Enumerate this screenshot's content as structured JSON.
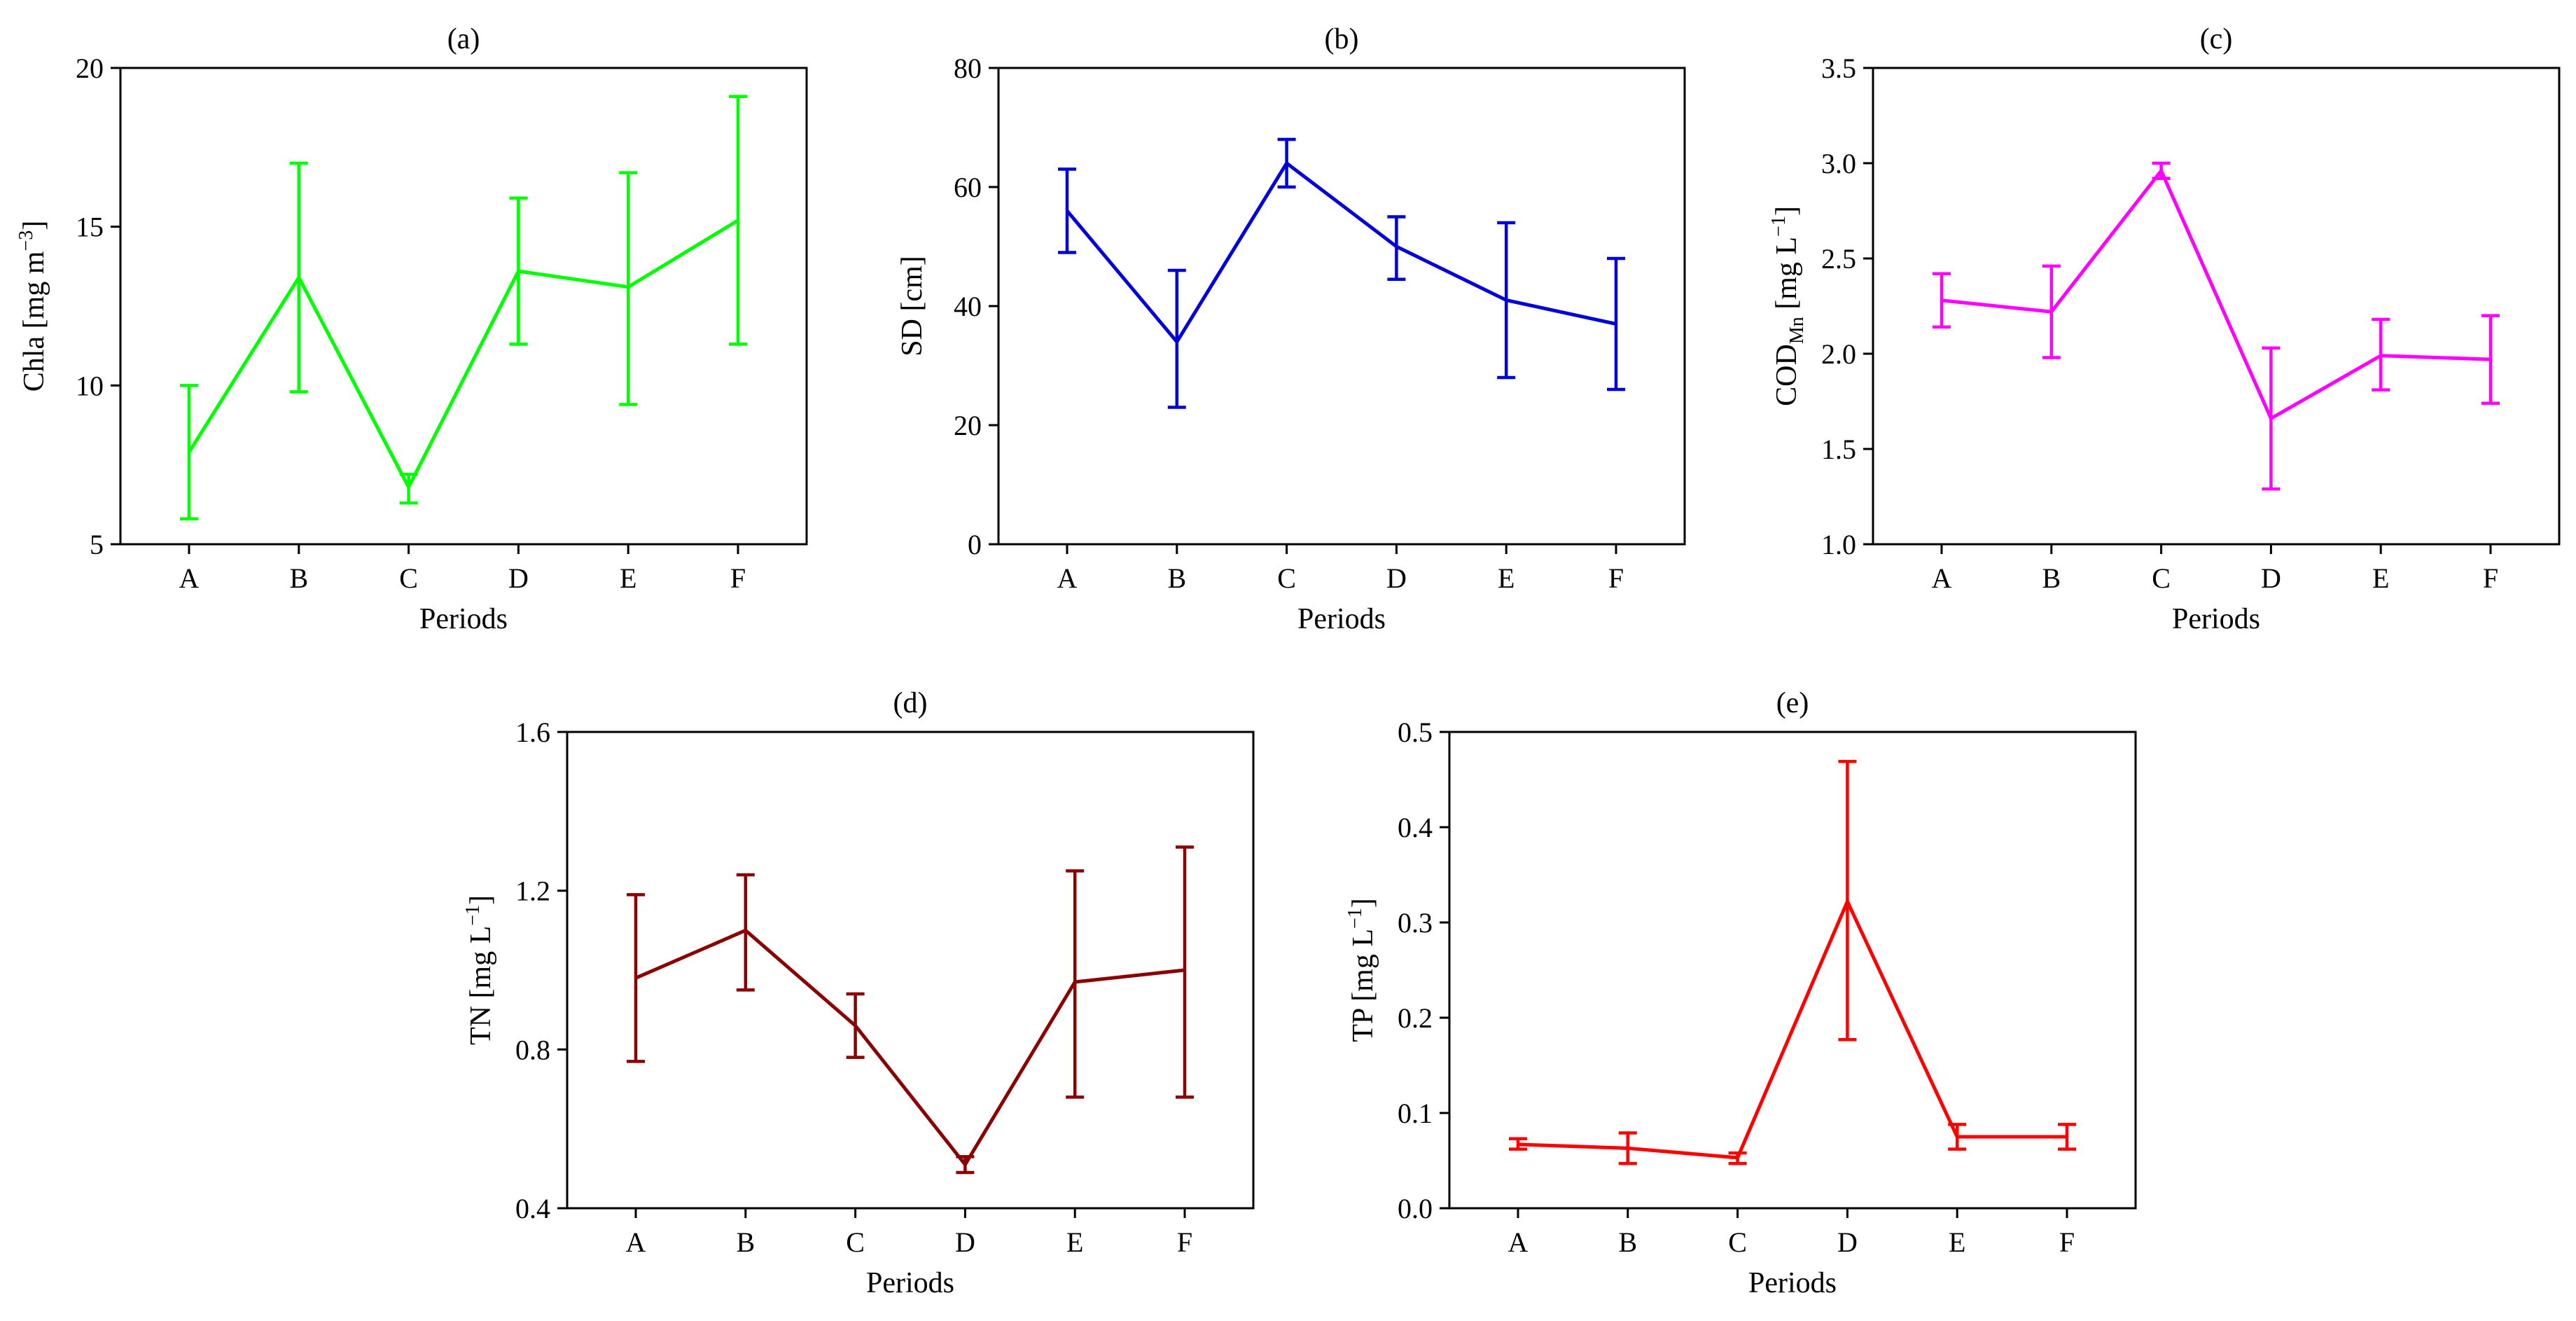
{
  "chart_data": [
    {
      "type": "line",
      "panel": "(a)",
      "title": "(a)",
      "xlabel": "Periods",
      "ylabel": {
        "text": "Chla [mg m",
        "sup": "−3",
        "tail": "]"
      },
      "categories": [
        "A",
        "B",
        "C",
        "D",
        "E",
        "F"
      ],
      "ylim": [
        5,
        20
      ],
      "yticks": [
        "5",
        "10",
        "15",
        "20"
      ],
      "color": "#00ff00",
      "series": [
        {
          "name": "Chla",
          "values": [
            7.9,
            13.4,
            6.8,
            13.6,
            13.1,
            15.2
          ],
          "err_low": [
            5.8,
            9.8,
            6.3,
            11.3,
            9.4,
            11.3
          ],
          "err_high": [
            10.0,
            17.0,
            7.2,
            15.9,
            16.7,
            19.1
          ]
        }
      ]
    },
    {
      "type": "line",
      "panel": "(b)",
      "title": "(b)",
      "xlabel": "Periods",
      "ylabel": {
        "text": "SD [cm]"
      },
      "categories": [
        "A",
        "B",
        "C",
        "D",
        "E",
        "F"
      ],
      "ylim": [
        0,
        80
      ],
      "yticks": [
        "0",
        "20",
        "40",
        "60",
        "80"
      ],
      "color": "#0000dd",
      "series": [
        {
          "name": "SD",
          "values": [
            56,
            34,
            64,
            50,
            41,
            37
          ],
          "err_low": [
            49,
            23,
            60,
            44.5,
            28,
            26
          ],
          "err_high": [
            63,
            46,
            68,
            55,
            54,
            48
          ]
        }
      ]
    },
    {
      "type": "line",
      "panel": "(c)",
      "title": "(c)",
      "xlabel": "Periods",
      "ylabel": {
        "text": "COD",
        "sub": "Mn",
        "mid": " [mg L",
        "sup": "−1",
        "tail": "]"
      },
      "categories": [
        "A",
        "B",
        "C",
        "D",
        "E",
        "F"
      ],
      "ylim": [
        1.0,
        3.5
      ],
      "yticks": [
        "1.0",
        "1.5",
        "2.0",
        "2.5",
        "3.0",
        "3.5"
      ],
      "color": "#ff00ff",
      "series": [
        {
          "name": "CODMn",
          "values": [
            2.28,
            2.22,
            2.96,
            1.66,
            1.99,
            1.97
          ],
          "err_low": [
            2.14,
            1.98,
            2.92,
            1.29,
            1.81,
            1.74
          ],
          "err_high": [
            2.42,
            2.46,
            3.0,
            2.03,
            2.18,
            2.2
          ]
        }
      ]
    },
    {
      "type": "line",
      "panel": "(d)",
      "title": "(d)",
      "xlabel": "Periods",
      "ylabel": {
        "text": "TN [mg L",
        "sup": "−1",
        "tail": "]"
      },
      "categories": [
        "A",
        "B",
        "C",
        "D",
        "E",
        "F"
      ],
      "ylim": [
        0.4,
        1.6
      ],
      "yticks": [
        "0.4",
        "0.8",
        "1.2",
        "1.6"
      ],
      "color": "#8b0000",
      "series": [
        {
          "name": "TN",
          "values": [
            0.98,
            1.1,
            0.86,
            0.51,
            0.97,
            1.0
          ],
          "err_low": [
            0.77,
            0.95,
            0.78,
            0.49,
            0.68,
            0.68
          ],
          "err_high": [
            1.19,
            1.24,
            0.94,
            0.53,
            1.25,
            1.31
          ]
        }
      ]
    },
    {
      "type": "line",
      "panel": "(e)",
      "title": "(e)",
      "xlabel": "Periods",
      "ylabel": {
        "text": "TP [mg L",
        "sup": "−1",
        "tail": "]"
      },
      "categories": [
        "A",
        "B",
        "C",
        "D",
        "E",
        "F"
      ],
      "ylim": [
        0.0,
        0.5
      ],
      "yticks": [
        "0.0",
        "0.1",
        "0.2",
        "0.3",
        "0.4",
        "0.5"
      ],
      "color": "#ff0000",
      "series": [
        {
          "name": "TP",
          "values": [
            0.067,
            0.063,
            0.053,
            0.322,
            0.075,
            0.075
          ],
          "err_low": [
            0.062,
            0.047,
            0.047,
            0.177,
            0.062,
            0.062
          ],
          "err_high": [
            0.073,
            0.079,
            0.058,
            0.469,
            0.088,
            0.088
          ]
        }
      ]
    }
  ]
}
